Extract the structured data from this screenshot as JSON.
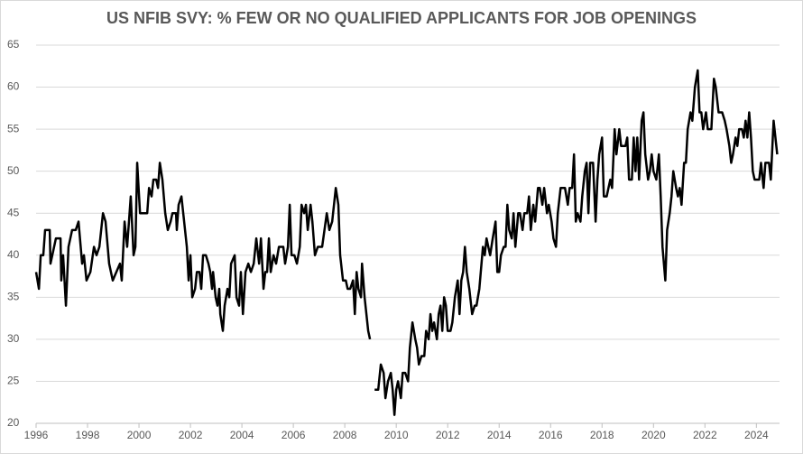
{
  "chart_data": {
    "type": "line",
    "title": "US NFIB SVY: % FEW OR NO QUALIFIED APPLICANTS FOR JOB OPENINGS",
    "x": [
      1996.0,
      1996.11,
      1996.18,
      1996.28,
      1996.35,
      1996.53,
      1996.56,
      1996.7,
      1996.77,
      1996.84,
      1996.95,
      1996.98,
      1997.05,
      1997.16,
      1997.26,
      1997.4,
      1997.54,
      1997.65,
      1997.79,
      1997.86,
      1997.96,
      1998.11,
      1998.25,
      1998.35,
      1998.46,
      1998.6,
      1998.7,
      1998.84,
      1998.98,
      1999.12,
      1999.26,
      1999.33,
      1999.44,
      1999.54,
      1999.68,
      1999.79,
      1999.86,
      1999.93,
      2000.04,
      2000.14,
      2000.32,
      2000.39,
      2000.49,
      2000.56,
      2000.67,
      2000.74,
      2000.81,
      2000.91,
      2001.02,
      2001.12,
      2001.23,
      2001.3,
      2001.44,
      2001.47,
      2001.54,
      2001.65,
      2001.72,
      2001.79,
      2001.86,
      2001.93,
      2002.0,
      2002.07,
      2002.18,
      2002.25,
      2002.35,
      2002.42,
      2002.49,
      2002.6,
      2002.7,
      2002.77,
      2002.84,
      2002.88,
      2002.98,
      2003.05,
      2003.12,
      2003.16,
      2003.26,
      2003.33,
      2003.44,
      2003.51,
      2003.58,
      2003.72,
      2003.79,
      2003.89,
      2003.96,
      2004.04,
      2004.14,
      2004.25,
      2004.35,
      2004.46,
      2004.56,
      2004.67,
      2004.74,
      2004.84,
      2004.91,
      2004.98,
      2005.05,
      2005.12,
      2005.23,
      2005.33,
      2005.44,
      2005.51,
      2005.61,
      2005.68,
      2005.79,
      2005.86,
      2005.93,
      2006.04,
      2006.14,
      2006.25,
      2006.32,
      2006.42,
      2006.49,
      2006.56,
      2006.67,
      2006.74,
      2006.84,
      2006.95,
      2007.02,
      2007.12,
      2007.3,
      2007.4,
      2007.51,
      2007.65,
      2007.75,
      2007.82,
      2007.93,
      2008.04,
      2008.11,
      2008.21,
      2008.32,
      2008.39,
      2008.46,
      2008.53,
      2008.63,
      2008.67,
      2008.77,
      2008.84,
      2008.91,
      2008.98,
      2009.05,
      2009.16,
      2009.3,
      2009.4,
      2009.51,
      2009.58,
      2009.68,
      2009.79,
      2009.86,
      2009.93,
      2010.0,
      2010.07,
      2010.18,
      2010.25,
      2010.35,
      2010.46,
      2010.53,
      2010.63,
      2010.74,
      2010.81,
      2010.88,
      2010.98,
      2011.09,
      2011.16,
      2011.26,
      2011.33,
      2011.4,
      2011.47,
      2011.58,
      2011.65,
      2011.72,
      2011.79,
      2011.86,
      2011.93,
      2012.0,
      2012.11,
      2012.18,
      2012.28,
      2012.39,
      2012.46,
      2012.53,
      2012.6,
      2012.67,
      2012.74,
      2012.84,
      2012.95,
      2013.05,
      2013.12,
      2013.23,
      2013.37,
      2013.44,
      2013.51,
      2013.58,
      2013.65,
      2013.75,
      2013.86,
      2013.93,
      2014.0,
      2014.07,
      2014.18,
      2014.25,
      2014.32,
      2014.39,
      2014.49,
      2014.56,
      2014.63,
      2014.74,
      2014.81,
      2014.91,
      2014.98,
      2015.09,
      2015.16,
      2015.23,
      2015.33,
      2015.4,
      2015.51,
      2015.58,
      2015.68,
      2015.75,
      2015.86,
      2015.93,
      2016.04,
      2016.11,
      2016.21,
      2016.28,
      2016.39,
      2016.49,
      2016.56,
      2016.67,
      2016.74,
      2016.84,
      2016.91,
      2016.98,
      2017.05,
      2017.16,
      2017.23,
      2017.33,
      2017.4,
      2017.47,
      2017.54,
      2017.65,
      2017.75,
      2017.82,
      2017.89,
      2018.0,
      2018.07,
      2018.18,
      2018.25,
      2018.32,
      2018.39,
      2018.49,
      2018.56,
      2018.67,
      2018.74,
      2018.81,
      2018.91,
      2018.98,
      2019.05,
      2019.16,
      2019.23,
      2019.3,
      2019.37,
      2019.44,
      2019.54,
      2019.61,
      2019.68,
      2019.79,
      2019.86,
      2019.93,
      2020.0,
      2020.11,
      2020.21,
      2020.28,
      2020.35,
      2020.46,
      2020.53,
      2020.63,
      2020.7,
      2020.77,
      2020.88,
      2020.95,
      2021.02,
      2021.09,
      2021.19,
      2021.26,
      2021.33,
      2021.44,
      2021.51,
      2021.61,
      2021.72,
      2021.79,
      2021.86,
      2021.93,
      2022.04,
      2022.11,
      2022.18,
      2022.25,
      2022.35,
      2022.42,
      2022.53,
      2022.6,
      2022.67,
      2022.77,
      2022.84,
      2022.95,
      2023.02,
      2023.09,
      2023.19,
      2023.26,
      2023.33,
      2023.44,
      2023.51,
      2023.58,
      2023.65,
      2023.72,
      2023.79,
      2023.86,
      2023.93,
      2024.04,
      2024.11,
      2024.18,
      2024.28,
      2024.35,
      2024.42,
      2024.49,
      2024.56,
      2024.67,
      2024.74,
      2024.81
    ],
    "series": [
      {
        "color": "#000000",
        "values": [
          38,
          36,
          40,
          40,
          43,
          43,
          39,
          41,
          42,
          42,
          42,
          37,
          40,
          34,
          41,
          43,
          43,
          44,
          39,
          40,
          37,
          38,
          41,
          40,
          41,
          45,
          44,
          39,
          37,
          38,
          39,
          37,
          44,
          41,
          47,
          40,
          41,
          51,
          45,
          45,
          45,
          48,
          47,
          49,
          49,
          48,
          51,
          49,
          45,
          43,
          44,
          45,
          45,
          43,
          46,
          47,
          45,
          43,
          41,
          37,
          40,
          35,
          36,
          38,
          38,
          36,
          40,
          40,
          39,
          38,
          36,
          38,
          35,
          34,
          36,
          33,
          31,
          34,
          36,
          35,
          39,
          40,
          35,
          34,
          38,
          33,
          38,
          39,
          38,
          39,
          42,
          39,
          42,
          36,
          38,
          38,
          42,
          38,
          40,
          39,
          41,
          41,
          41,
          39,
          41,
          46,
          40,
          40,
          39,
          41,
          46,
          45,
          46,
          43,
          46,
          44,
          40,
          41,
          41,
          41,
          45,
          43,
          44,
          48,
          46,
          40,
          37,
          37,
          36,
          36,
          37,
          33,
          38,
          36,
          35,
          39,
          35,
          33,
          31,
          30,
          null,
          24,
          24,
          27,
          26,
          23,
          25,
          26,
          24,
          21,
          24,
          25,
          23,
          26,
          26,
          25,
          29,
          32,
          30,
          29,
          27,
          28,
          28,
          31,
          30,
          33,
          31,
          32,
          30,
          33,
          34,
          31,
          35,
          34,
          31,
          31,
          32,
          35,
          37,
          33,
          37,
          38,
          41,
          38,
          36,
          33,
          34,
          34,
          36,
          41,
          40,
          42,
          41,
          40,
          42,
          44,
          38,
          38,
          40,
          41,
          41,
          46,
          43,
          42,
          45,
          41,
          45,
          45,
          43,
          45,
          45,
          47,
          43,
          46,
          44,
          48,
          48,
          46,
          48,
          45,
          46,
          44,
          42,
          41,
          45,
          48,
          48,
          48,
          46,
          48,
          48,
          52,
          44,
          45,
          44,
          47,
          50,
          51,
          45,
          51,
          51,
          44,
          49,
          52,
          54,
          47,
          47,
          48,
          49,
          48,
          55,
          52,
          55,
          53,
          53,
          53,
          54,
          49,
          49,
          54,
          50,
          54,
          49,
          56,
          57,
          52,
          49,
          50,
          52,
          50,
          49,
          52,
          47,
          41,
          37,
          43,
          45,
          47,
          50,
          48,
          47,
          48,
          46,
          51,
          51,
          55,
          57,
          56,
          60,
          62,
          57,
          57,
          55,
          57,
          55,
          55,
          55,
          61,
          60,
          57,
          57,
          57,
          56,
          55,
          53,
          51,
          52,
          54,
          53,
          55,
          55,
          54,
          56,
          54,
          57,
          54,
          50,
          49,
          49,
          49,
          51,
          48,
          51,
          51,
          51,
          49,
          56,
          54,
          52
        ]
      }
    ],
    "xlim": [
      1996,
      2024.9
    ],
    "xticks": [
      1996,
      1998,
      2000,
      2002,
      2004,
      2006,
      2008,
      2010,
      2012,
      2014,
      2016,
      2018,
      2020,
      2022,
      2024
    ],
    "ylim": [
      20,
      65
    ],
    "yticks": [
      20,
      25,
      30,
      35,
      40,
      45,
      50,
      55,
      60,
      65
    ],
    "grid": true
  }
}
